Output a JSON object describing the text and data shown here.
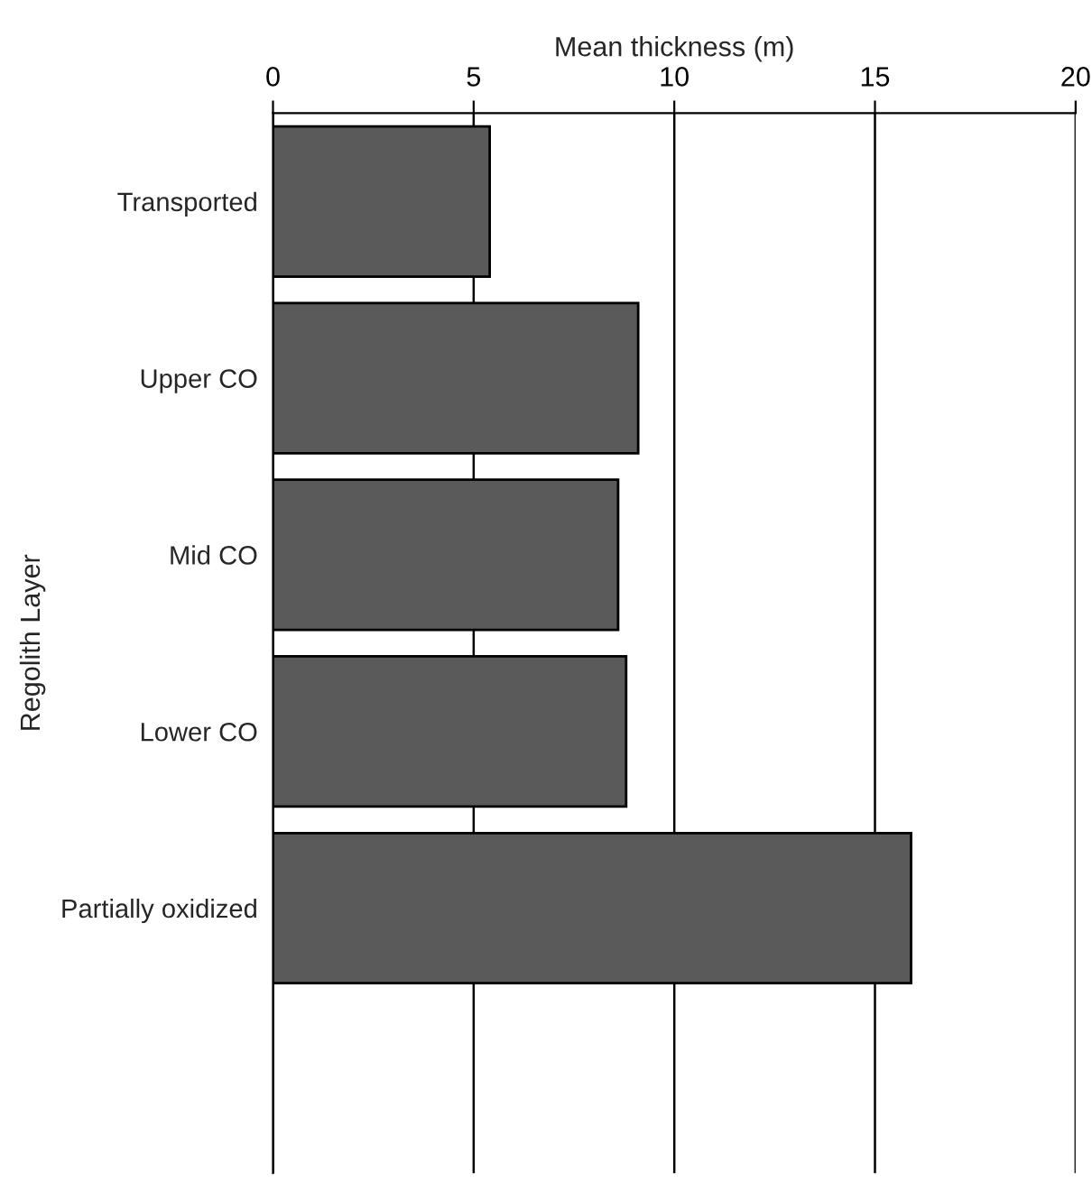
{
  "chart_data": {
    "type": "bar",
    "orientation": "horizontal",
    "xlabel": "Mean thickness (m)",
    "ylabel": "Regolith Layer",
    "categories": [
      "Transported",
      "Upper CO",
      "Mid CO",
      "Lower CO",
      "Partially oxidized",
      null
    ],
    "series": [
      {
        "color": "#5a5a5a",
        "values": [
          5.4,
          9.1,
          8.6,
          8.8,
          15.9,
          null
        ]
      }
    ],
    "xlim": [
      0,
      20
    ],
    "xticks": [
      0,
      5,
      10,
      15,
      20
    ],
    "grid": "x",
    "legend": false
  }
}
